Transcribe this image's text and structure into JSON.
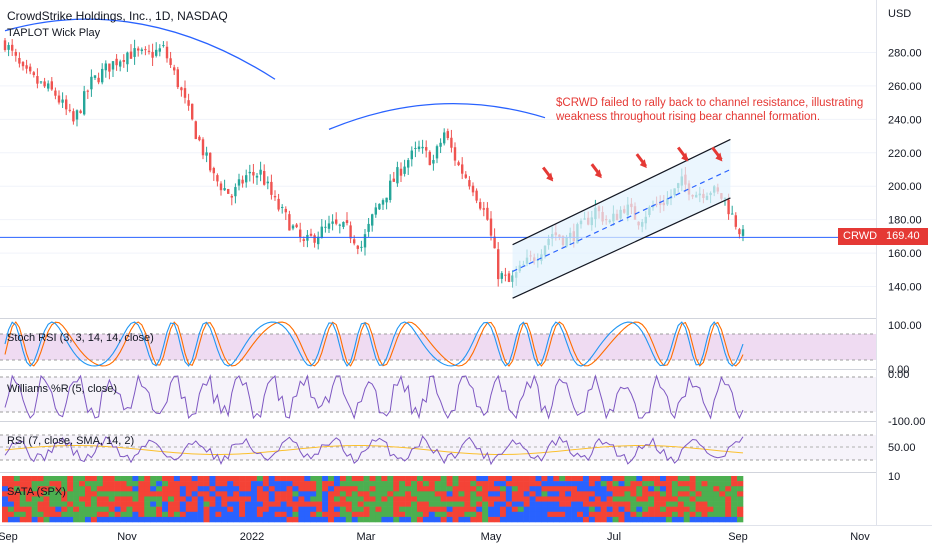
{
  "title": "CrowdStrike Holdings, Inc., 1D, NASDAQ",
  "indicator_label": "TAPLOT Wick Play",
  "currency": "USD",
  "annotation": "$CRWD failed to rally back to channel resistance, illustrating weakness throughout rising bear channel formation.",
  "price_badge": {
    "symbol": "CRWD",
    "price": "169.40"
  },
  "panes": {
    "stoch": {
      "label": "Stoch RSI (3, 3, 14, 14, close)",
      "ticks": [
        "100.00",
        "0.00"
      ]
    },
    "williams": {
      "label": "Williams %R (5, close)",
      "ticks": [
        "0.00",
        "-100.00"
      ]
    },
    "rsi": {
      "label": "RSI (7, close, SMA, 14, 2)",
      "ticks": [
        "50.00"
      ]
    },
    "sata": {
      "label": "SATA (SPX)",
      "ticks": [
        "10"
      ]
    }
  },
  "colors": {
    "up": "#26a69a",
    "down": "#ef5350",
    "accent_red": "#e53935",
    "arc": "#2962ff",
    "stoch_k": "#2196f3",
    "stoch_d": "#ff6d00",
    "williams": "#7e57c2",
    "rsi": "#7e57c2",
    "rsi_ma": "#fbc02d",
    "sata_green": "#4caf50",
    "sata_red": "#f44336",
    "sata_blue": "#2962ff"
  },
  "chart_data": {
    "type": "candlestick",
    "x_labels": [
      "Sep",
      "Nov",
      "2022",
      "Mar",
      "May",
      "Jul",
      "Sep",
      "Nov"
    ],
    "y_ticks": [
      140,
      160,
      180,
      200,
      220,
      240,
      260,
      280
    ],
    "ylim": [
      127,
      292
    ],
    "last_price": 169.4,
    "horizontal_line": 169.4,
    "anchors": [
      {
        "d": 0,
        "c": 286
      },
      {
        "d": 10,
        "c": 268
      },
      {
        "d": 18,
        "c": 262
      },
      {
        "d": 28,
        "c": 255
      },
      {
        "d": 38,
        "c": 238
      },
      {
        "d": 48,
        "c": 262
      },
      {
        "d": 58,
        "c": 272
      },
      {
        "d": 68,
        "c": 280
      },
      {
        "d": 78,
        "c": 278
      },
      {
        "d": 88,
        "c": 282
      },
      {
        "d": 96,
        "c": 262
      },
      {
        "d": 106,
        "c": 232
      },
      {
        "d": 116,
        "c": 205
      },
      {
        "d": 126,
        "c": 194
      },
      {
        "d": 134,
        "c": 206
      },
      {
        "d": 142,
        "c": 208
      },
      {
        "d": 150,
        "c": 190
      },
      {
        "d": 158,
        "c": 178
      },
      {
        "d": 166,
        "c": 165
      },
      {
        "d": 174,
        "c": 172
      },
      {
        "d": 182,
        "c": 176
      },
      {
        "d": 190,
        "c": 174
      },
      {
        "d": 198,
        "c": 164
      },
      {
        "d": 206,
        "c": 186
      },
      {
        "d": 214,
        "c": 200
      },
      {
        "d": 222,
        "c": 214
      },
      {
        "d": 230,
        "c": 222
      },
      {
        "d": 238,
        "c": 215
      },
      {
        "d": 244,
        "c": 232
      },
      {
        "d": 252,
        "c": 212
      },
      {
        "d": 260,
        "c": 200
      },
      {
        "d": 268,
        "c": 180
      },
      {
        "d": 274,
        "c": 148
      },
      {
        "d": 280,
        "c": 142
      },
      {
        "d": 288,
        "c": 152
      },
      {
        "d": 296,
        "c": 160
      },
      {
        "d": 304,
        "c": 172
      },
      {
        "d": 312,
        "c": 168
      },
      {
        "d": 320,
        "c": 175
      },
      {
        "d": 328,
        "c": 186
      },
      {
        "d": 336,
        "c": 178
      },
      {
        "d": 344,
        "c": 188
      },
      {
        "d": 352,
        "c": 180
      },
      {
        "d": 360,
        "c": 188
      },
      {
        "d": 368,
        "c": 192
      },
      {
        "d": 376,
        "c": 202
      },
      {
        "d": 384,
        "c": 196
      },
      {
        "d": 392,
        "c": 198
      },
      {
        "d": 400,
        "c": 192
      },
      {
        "d": 404,
        "c": 182
      },
      {
        "d": 410,
        "c": 170
      }
    ],
    "channel": {
      "upper": [
        {
          "d": 282,
          "v": 165
        },
        {
          "d": 403,
          "v": 228
        }
      ],
      "lower": [
        {
          "d": 282,
          "v": 133
        },
        {
          "d": 403,
          "v": 193
        }
      ],
      "median": [
        {
          "d": 282,
          "v": 149
        },
        {
          "d": 403,
          "v": 210
        }
      ]
    },
    "arcs": [
      {
        "from_day": 0,
        "to_day": 150,
        "start": 293,
        "peak": 305,
        "end": 264
      },
      {
        "from_day": 180,
        "to_day": 300,
        "start": 234,
        "peak": 250,
        "end": 241
      }
    ],
    "arrows_at": [
      {
        "d": 304,
        "v": 204
      },
      {
        "d": 331,
        "v": 206
      },
      {
        "d": 356,
        "v": 212
      },
      {
        "d": 379,
        "v": 216
      },
      {
        "d": 398,
        "v": 216
      }
    ]
  }
}
